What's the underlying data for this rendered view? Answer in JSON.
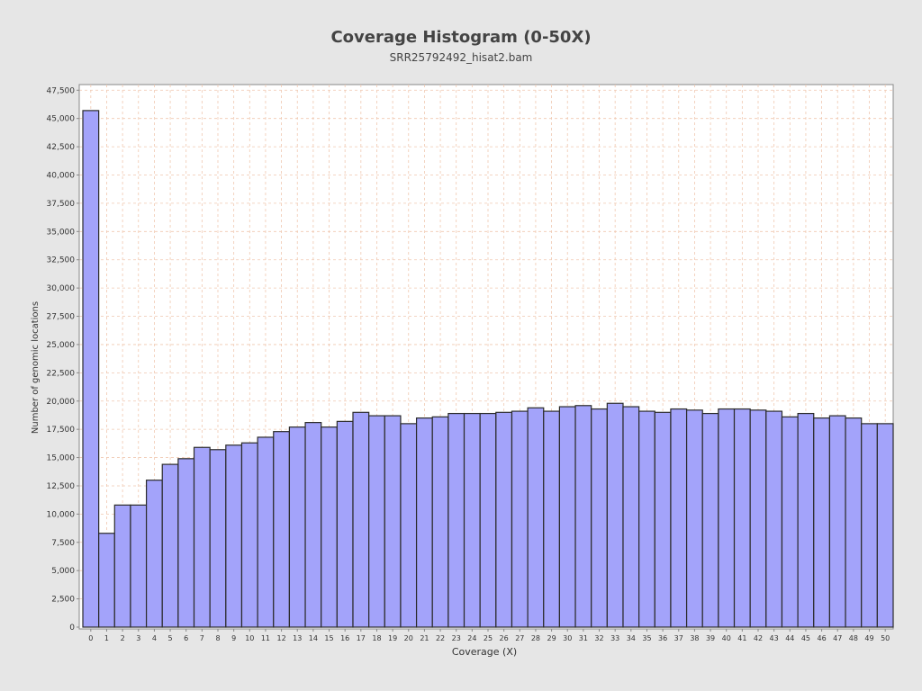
{
  "chart_data": {
    "type": "bar",
    "title": "Coverage Histogram (0-50X)",
    "subtitle": "SRR25792492_hisat2.bam",
    "xlabel": "Coverage (X)",
    "ylabel": "Number of genomic locations",
    "ylim": [
      0,
      48000
    ],
    "yticks": [
      0,
      2500,
      5000,
      7500,
      10000,
      12500,
      15000,
      17500,
      20000,
      22500,
      25000,
      27500,
      30000,
      32500,
      35000,
      37500,
      40000,
      42500,
      45000,
      47500
    ],
    "ytick_labels": [
      "0",
      "2,500",
      "5,000",
      "7,500",
      "10,000",
      "12,500",
      "15,000",
      "17,500",
      "20,000",
      "22,500",
      "25,000",
      "27,500",
      "30,000",
      "32,500",
      "35,000",
      "37,500",
      "40,000",
      "42,500",
      "45,000",
      "47,500"
    ],
    "categories": [
      "0",
      "1",
      "2",
      "3",
      "4",
      "5",
      "6",
      "7",
      "8",
      "9",
      "10",
      "11",
      "12",
      "13",
      "14",
      "15",
      "16",
      "17",
      "18",
      "19",
      "20",
      "21",
      "22",
      "23",
      "24",
      "25",
      "26",
      "27",
      "28",
      "29",
      "30",
      "31",
      "32",
      "33",
      "34",
      "35",
      "36",
      "37",
      "38",
      "39",
      "40",
      "41",
      "42",
      "43",
      "44",
      "45",
      "46",
      "47",
      "48",
      "49",
      "50"
    ],
    "values": [
      45700,
      8300,
      10800,
      10800,
      13000,
      14400,
      14900,
      15900,
      15700,
      16100,
      16300,
      16800,
      17300,
      17700,
      18100,
      17700,
      18200,
      19000,
      18700,
      18700,
      18000,
      18500,
      18600,
      18900,
      18900,
      18900,
      19000,
      19100,
      19400,
      19100,
      19500,
      19600,
      19300,
      19800,
      19500,
      19100,
      19000,
      19300,
      19200,
      18900,
      19300,
      19300,
      19200,
      19100,
      18600,
      18900,
      18500,
      18700,
      18500,
      18000,
      18000
    ],
    "grid": true,
    "legend": "none",
    "colors": {
      "bar_fill": "#a3a3fa",
      "bar_stroke": "#2b2b2b",
      "grid": "#f0c8b0",
      "background": "#e6e6e6",
      "plot_background": "#ffffff"
    }
  }
}
